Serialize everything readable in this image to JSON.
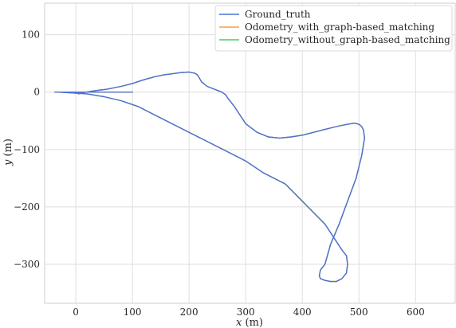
{
  "chart_data": {
    "type": "line",
    "title": "",
    "xlabel_var": "x",
    "xlabel_unit": " (m)",
    "ylabel_var": "y",
    "ylabel_unit": " (m)",
    "xlim": [
      -55,
      670
    ],
    "ylim": [
      -368,
      155
    ],
    "xticks": [
      0,
      100,
      200,
      300,
      400,
      500,
      600
    ],
    "yticks": [
      -300,
      -200,
      -100,
      0,
      100
    ],
    "grid": true,
    "legend_position": "top-right",
    "series": [
      {
        "name": "Ground_truth",
        "color": "#4c72d8",
        "x": [
          5,
          12,
          30,
          55,
          80,
          100,
          115,
          125,
          140,
          155,
          170,
          185,
          200,
          210,
          215,
          218,
          222,
          232,
          245,
          258,
          265,
          268,
          272,
          280,
          290,
          300,
          320,
          340,
          360,
          380,
          400,
          420,
          440,
          460,
          480,
          492,
          500,
          505,
          508,
          510,
          505,
          495,
          480,
          465,
          450,
          440,
          432,
          430,
          432,
          440,
          450,
          460,
          470,
          478,
          480,
          478,
          470,
          460,
          450,
          440,
          420,
          400,
          380,
          370,
          360,
          350,
          330,
          300,
          260,
          220,
          180,
          140,
          110,
          80,
          50,
          20,
          -10,
          -30,
          -37,
          -36,
          -25,
          -10,
          10,
          30,
          50,
          65,
          75,
          85,
          95,
          100
        ],
        "y": [
          -3,
          -1,
          2,
          5,
          10,
          15,
          20,
          23,
          27,
          30,
          32,
          34,
          35,
          33,
          30,
          25,
          18,
          10,
          5,
          0,
          -5,
          -10,
          -15,
          -25,
          -40,
          -55,
          -70,
          -78,
          -80,
          -78,
          -75,
          -70,
          -65,
          -60,
          -56,
          -54,
          -56,
          -60,
          -66,
          -80,
          -110,
          -150,
          -190,
          -230,
          -265,
          -300,
          -310,
          -320,
          -325,
          -328,
          -330,
          -330,
          -325,
          -315,
          -300,
          -285,
          -275,
          -260,
          -245,
          -230,
          -210,
          -190,
          -170,
          -160,
          -155,
          -150,
          -140,
          -120,
          -100,
          -80,
          -60,
          -40,
          -25,
          -15,
          -8,
          -3,
          -1,
          0,
          0,
          0,
          0,
          0,
          0,
          0,
          0,
          0,
          0,
          0,
          0,
          0
        ]
      },
      {
        "name": "Odometry_with_graph-based_matching",
        "color": "#f0a04b",
        "x": [
          5,
          12,
          30,
          55,
          80,
          100,
          115,
          125,
          140,
          155,
          170,
          185,
          200,
          210,
          215,
          218,
          222,
          232,
          245,
          258,
          265,
          268,
          272,
          280,
          290,
          300,
          320,
          340,
          360,
          380,
          400,
          420,
          440,
          460,
          480,
          492,
          500,
          505,
          508,
          510,
          505,
          495,
          480,
          465,
          450,
          440,
          432,
          430,
          432,
          440,
          450,
          460,
          470,
          478,
          480,
          478,
          470,
          460,
          450,
          440,
          420,
          400,
          380,
          370,
          360,
          350,
          330,
          300,
          260,
          220,
          180,
          140,
          110,
          80,
          50,
          20,
          -10,
          -30,
          -37,
          -36,
          -25,
          -10,
          10,
          30,
          50,
          65,
          75,
          85,
          95,
          100
        ],
        "y": [
          -3,
          -1,
          2,
          5,
          10,
          15,
          20,
          23,
          27,
          30,
          32,
          34,
          35,
          33,
          30,
          25,
          18,
          10,
          5,
          0,
          -5,
          -10,
          -15,
          -25,
          -40,
          -55,
          -70,
          -78,
          -80,
          -78,
          -75,
          -70,
          -65,
          -60,
          -56,
          -54,
          -56,
          -60,
          -66,
          -80,
          -110,
          -150,
          -190,
          -230,
          -265,
          -300,
          -310,
          -320,
          -325,
          -328,
          -330,
          -330,
          -325,
          -315,
          -300,
          -285,
          -275,
          -260,
          -245,
          -230,
          -210,
          -190,
          -170,
          -160,
          -155,
          -150,
          -140,
          -120,
          -100,
          -80,
          -60,
          -40,
          -25,
          -15,
          -8,
          -3,
          -1,
          0,
          0,
          0,
          0,
          0,
          0,
          0,
          0,
          0,
          0,
          0,
          0,
          0
        ]
      },
      {
        "name": "Odometry_without_graph-based_matching",
        "color": "#55c667",
        "x": [
          5,
          12,
          30,
          55,
          80,
          100,
          115,
          125,
          140,
          155,
          170,
          185,
          200,
          210,
          215,
          218,
          222,
          232,
          245,
          258,
          265,
          268,
          272,
          280,
          290,
          300,
          320,
          340,
          360,
          380,
          400,
          420,
          440,
          460,
          480,
          492,
          500,
          505,
          508,
          510,
          505,
          495,
          480,
          465,
          450,
          440,
          432,
          430,
          432,
          440,
          450,
          460,
          470,
          478,
          480,
          478,
          470,
          460,
          450,
          440,
          420,
          400,
          380,
          370,
          360,
          350,
          330,
          300,
          260,
          220,
          180,
          140,
          110,
          80,
          50,
          20,
          -10,
          -30,
          -37,
          -36,
          -25,
          -10,
          10,
          30,
          50,
          65,
          75,
          85,
          95,
          100
        ],
        "y": [
          -3,
          -1,
          2,
          5,
          10,
          15,
          20,
          23,
          27,
          30,
          32,
          34,
          35,
          33,
          30,
          25,
          18,
          10,
          5,
          0,
          -5,
          -10,
          -15,
          -25,
          -40,
          -55,
          -70,
          -78,
          -80,
          -78,
          -75,
          -70,
          -65,
          -60,
          -56,
          -54,
          -56,
          -60,
          -66,
          -80,
          -110,
          -150,
          -190,
          -230,
          -265,
          -300,
          -310,
          -320,
          -325,
          -328,
          -330,
          -330,
          -325,
          -315,
          -300,
          -285,
          -275,
          -260,
          -245,
          -230,
          -210,
          -190,
          -170,
          -160,
          -155,
          -150,
          -140,
          -120,
          -100,
          -80,
          -60,
          -40,
          -25,
          -15,
          -8,
          -3,
          -1,
          0,
          0,
          0,
          0,
          0,
          0,
          0,
          0,
          0,
          0,
          0,
          0,
          0
        ]
      }
    ]
  }
}
